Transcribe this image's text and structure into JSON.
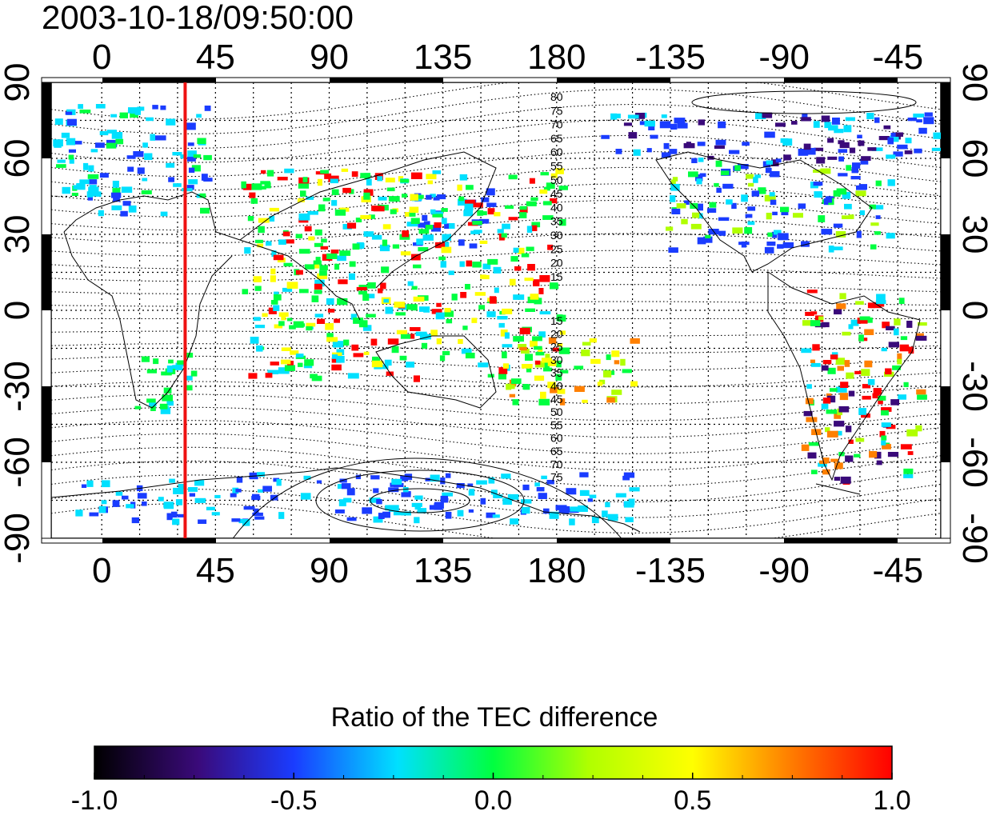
{
  "title": "2003-10-18/09:50:00",
  "map": {
    "lon_ticks": [
      "0",
      "45",
      "90",
      "135",
      "180",
      "-135",
      "-90",
      "-45"
    ],
    "lat_ticks": [
      "90",
      "60",
      "30",
      "0",
      "-30",
      "-60",
      "-90"
    ],
    "contour_labels_north": [
      "80",
      "75",
      "70",
      "65",
      "60",
      "55",
      "50",
      "45",
      "40",
      "35",
      "30",
      "25",
      "20",
      "15"
    ],
    "contour_labels_south": [
      "15",
      "20",
      "25",
      "30",
      "35",
      "40",
      "45",
      "50",
      "55",
      "60",
      "65",
      "70",
      "75"
    ],
    "red_line_longitude": 33
  },
  "colorbar": {
    "label": "Ratio of the TEC difference",
    "ticks": [
      "-1.0",
      "-0.5",
      "0.0",
      "0.5",
      "1.0"
    ],
    "colors": [
      "#000000",
      "#3a0a7a",
      "#1a3cff",
      "#00e0ff",
      "#00ff40",
      "#b0ff00",
      "#ffff00",
      "#ff8000",
      "#ff0000"
    ]
  }
}
